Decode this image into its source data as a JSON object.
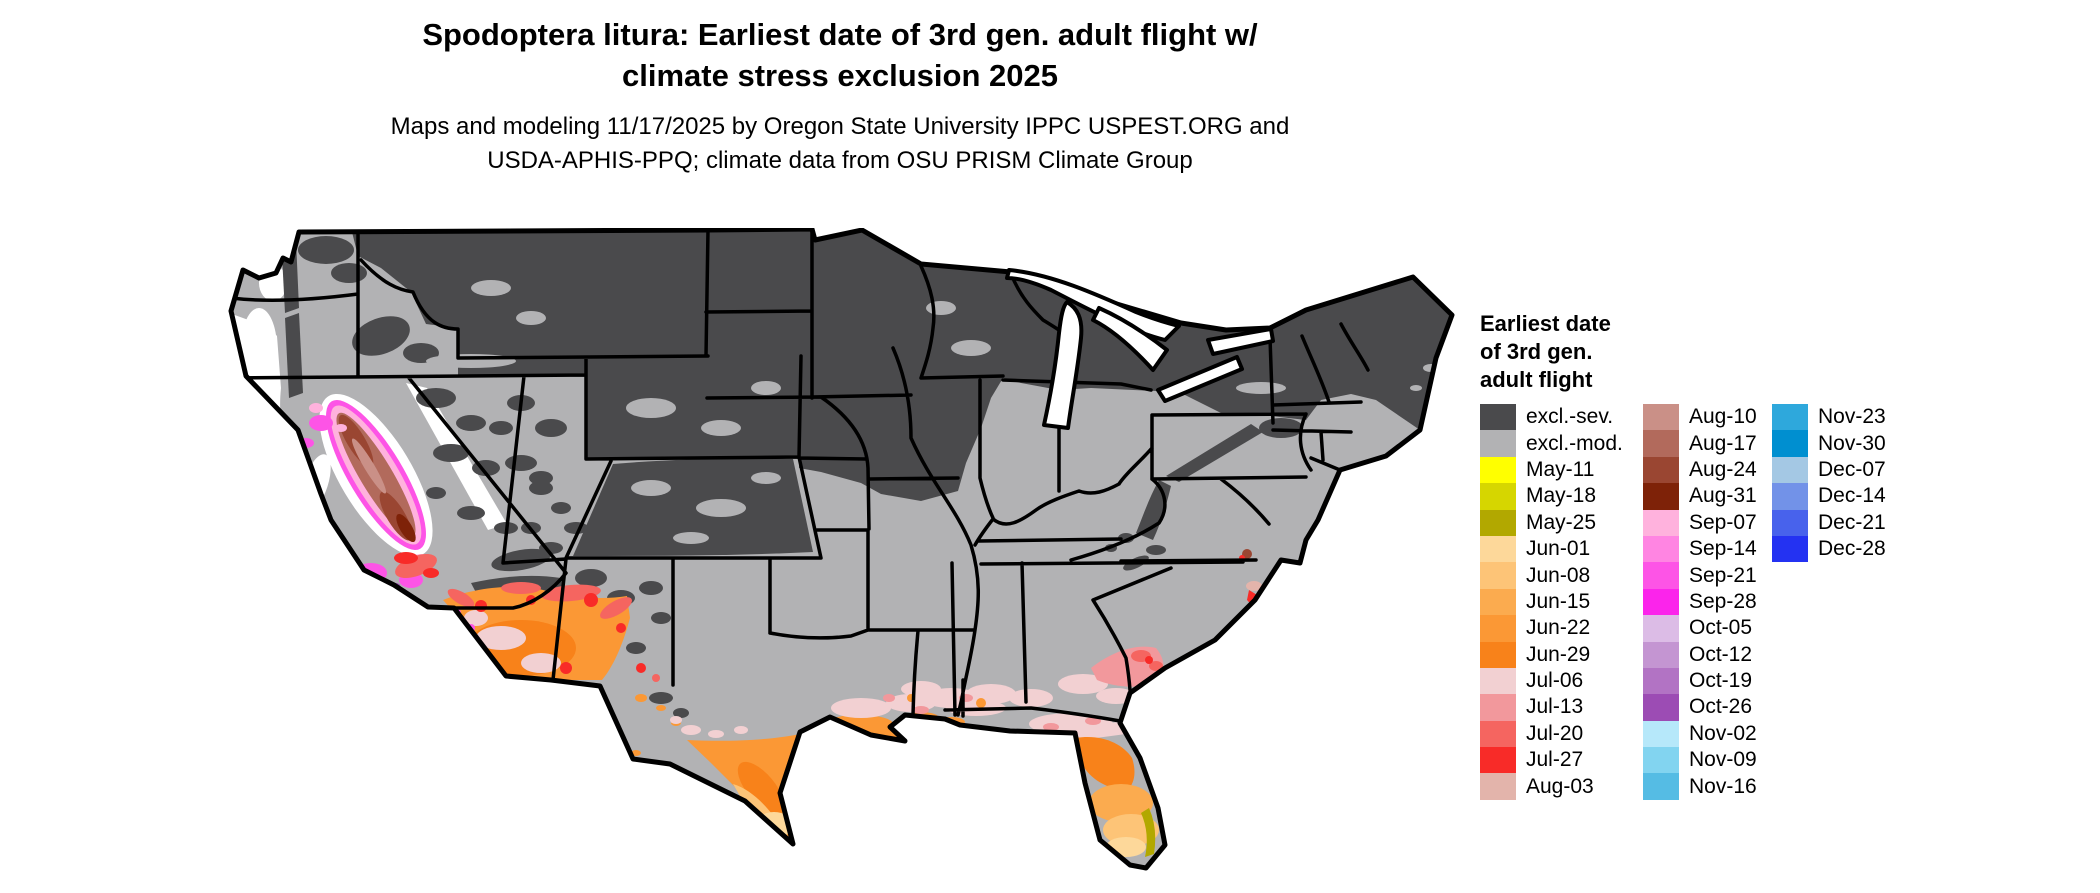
{
  "title": {
    "line1": "Spodoptera litura: Earliest date of 3rd gen. adult flight w/",
    "line2": "climate stress exclusion 2025"
  },
  "subtitle": {
    "line1": "Maps and modeling 11/17/2025 by Oregon State University IPPC USPEST.ORG and",
    "line2": "USDA-APHIS-PPQ; climate data from OSU PRISM Climate Group"
  },
  "legend": {
    "title_lines": [
      "Earliest date",
      "of 3rd gen.",
      "adult flight"
    ],
    "columns": [
      [
        {
          "label": "excl.-sev.",
          "color": "#4a4a4c"
        },
        {
          "label": "excl.-mod.",
          "color": "#b2b2b4"
        },
        {
          "label": "May-11",
          "color": "#ffff00"
        },
        {
          "label": "May-18",
          "color": "#d6d600"
        },
        {
          "label": "May-25",
          "color": "#b2a800"
        },
        {
          "label": "Jun-01",
          "color": "#fdd89a"
        },
        {
          "label": "Jun-08",
          "color": "#fdc477"
        },
        {
          "label": "Jun-15",
          "color": "#fbab4f"
        },
        {
          "label": "Jun-22",
          "color": "#fb9835"
        },
        {
          "label": "Jun-29",
          "color": "#f8821a"
        },
        {
          "label": "Jul-06",
          "color": "#f2d0d2"
        },
        {
          "label": "Jul-13",
          "color": "#f2989c"
        },
        {
          "label": "Jul-20",
          "color": "#f56560"
        },
        {
          "label": "Jul-27",
          "color": "#f82b28"
        },
        {
          "label": "Aug-03",
          "color": "#e3b4ab"
        }
      ],
      [
        {
          "label": "Aug-10",
          "color": "#ca9087"
        },
        {
          "label": "Aug-17",
          "color": "#b26a5c"
        },
        {
          "label": "Aug-24",
          "color": "#9a4632"
        },
        {
          "label": "Aug-31",
          "color": "#7e2208"
        },
        {
          "label": "Sep-07",
          "color": "#ffb2dd"
        },
        {
          "label": "Sep-14",
          "color": "#ff85e2"
        },
        {
          "label": "Sep-21",
          "color": "#fd54e6"
        },
        {
          "label": "Sep-28",
          "color": "#fb24eb"
        },
        {
          "label": "Oct-05",
          "color": "#dcbce6"
        },
        {
          "label": "Oct-12",
          "color": "#c495d2"
        },
        {
          "label": "Oct-19",
          "color": "#b273c4"
        },
        {
          "label": "Oct-26",
          "color": "#9c4cb4"
        },
        {
          "label": "Nov-02",
          "color": "#b6e8fa"
        },
        {
          "label": "Nov-09",
          "color": "#82d4f0"
        },
        {
          "label": "Nov-16",
          "color": "#55bce4"
        }
      ],
      [
        {
          "label": "Nov-23",
          "color": "#2ea8dc"
        },
        {
          "label": "Nov-30",
          "color": "#008fd0"
        },
        {
          "label": "Dec-07",
          "color": "#a4c8e4"
        },
        {
          "label": "Dec-14",
          "color": "#7292e8"
        },
        {
          "label": "Dec-21",
          "color": "#4862ec"
        },
        {
          "label": "Dec-28",
          "color": "#2432f2"
        }
      ]
    ]
  },
  "map": {
    "background_color": "#ffffff",
    "excluded_severe_color": "#4a4a4c",
    "excluded_moderate_color": "#b2b2b4",
    "border_color": "#000000"
  }
}
